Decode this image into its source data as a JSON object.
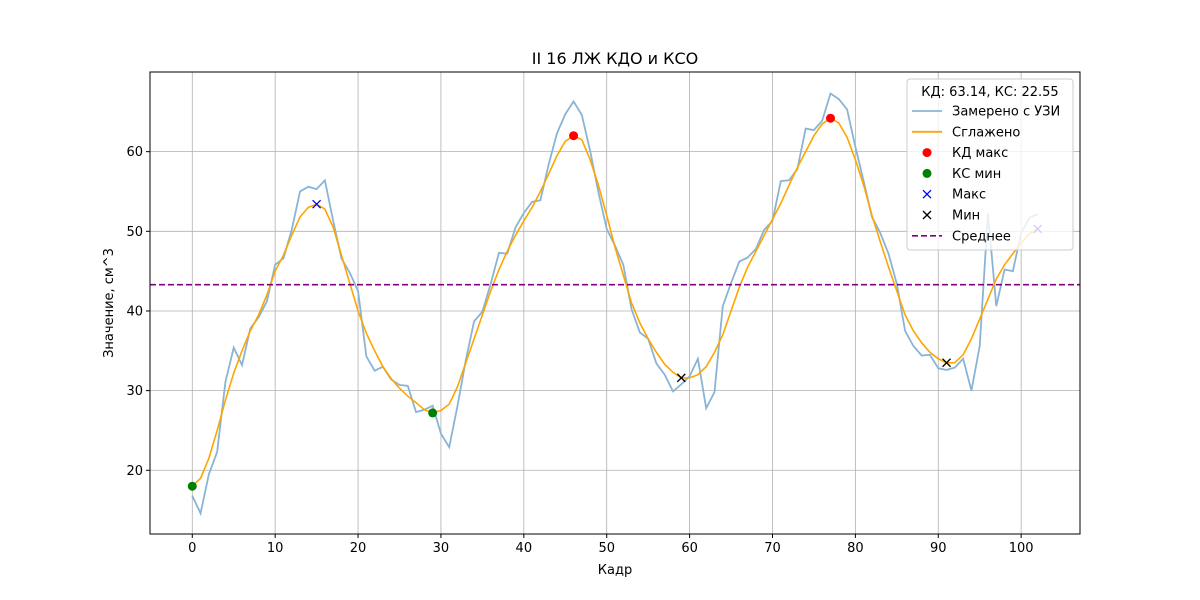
{
  "chart_data": {
    "type": "line",
    "title": "II 16 ЛЖ КДО и КСО",
    "xlabel": "Кадр",
    "ylabel": "Значение, см^3",
    "xlim": [
      -5.1,
      107.1
    ],
    "ylim": [
      12,
      70
    ],
    "xticks": [
      0,
      10,
      20,
      30,
      40,
      50,
      60,
      70,
      80,
      90,
      100
    ],
    "yticks": [
      20,
      30,
      40,
      50,
      60
    ],
    "grid": true,
    "legend_position": "top-right",
    "legend_title": "КД: 63.14, КС: 22.55",
    "colors": {
      "measured": "#8ab4d6",
      "smoothed": "#ffa500",
      "kd_max": "#ff0000",
      "ks_min": "#008000",
      "max": "#0000ff",
      "min": "#000000",
      "mean": "#800080"
    },
    "series": [
      {
        "name": "Замерено с УЗИ",
        "style": "line",
        "x": [
          0,
          1,
          2,
          3,
          4,
          5,
          6,
          7,
          8,
          9,
          10,
          11,
          12,
          13,
          14,
          15,
          16,
          17,
          18,
          19,
          20,
          21,
          22,
          23,
          24,
          25,
          26,
          27,
          28,
          29,
          30,
          31,
          32,
          33,
          34,
          35,
          36,
          37,
          38,
          39,
          40,
          41,
          42,
          43,
          44,
          45,
          46,
          47,
          48,
          49,
          50,
          51,
          52,
          53,
          54,
          55,
          56,
          57,
          58,
          59,
          60,
          61,
          62,
          63,
          64,
          65,
          66,
          67,
          68,
          69,
          70,
          71,
          72,
          73,
          74,
          75,
          76,
          77,
          78,
          79,
          80,
          81,
          82,
          83,
          84,
          85,
          86,
          87,
          88,
          89,
          90,
          91,
          92,
          93,
          94,
          95,
          96,
          97,
          98,
          99,
          100,
          101,
          102
        ],
        "y": [
          16.8,
          14.6,
          19.5,
          22.3,
          31.1,
          35.4,
          33.2,
          37.8,
          39.2,
          41.2,
          45.8,
          46.6,
          50.2,
          55.0,
          55.6,
          55.3,
          56.4,
          51.3,
          46.6,
          44.8,
          42.5,
          34.3,
          32.5,
          33.0,
          31.4,
          30.7,
          30.6,
          27.3,
          27.6,
          28.1,
          24.6,
          22.9,
          28.1,
          33.8,
          38.7,
          39.9,
          43.4,
          47.3,
          47.2,
          50.5,
          52.3,
          53.7,
          53.9,
          58.4,
          62.3,
          64.7,
          66.3,
          64.6,
          60.1,
          54.9,
          50.3,
          48.2,
          45.8,
          40.2,
          37.3,
          36.5,
          33.4,
          32.0,
          29.9,
          30.8,
          31.8,
          34.0,
          27.8,
          29.8,
          40.6,
          43.5,
          46.2,
          46.7,
          47.8,
          50.2,
          51.3,
          56.3,
          56.4,
          57.8,
          62.9,
          62.7,
          63.9,
          67.3,
          66.6,
          65.3,
          60.6,
          56.3,
          51.8,
          49.8,
          47.2,
          43.4,
          37.5,
          35.6,
          34.4,
          34.5,
          32.8,
          32.6,
          32.9,
          34.0,
          30.0,
          35.6,
          52.3,
          40.6,
          45.2,
          45.0,
          49.8,
          51.7,
          52.2
        ]
      },
      {
        "name": "Сглажено",
        "style": "line",
        "x": [
          0,
          1,
          2,
          3,
          4,
          5,
          6,
          7,
          8,
          9,
          10,
          11,
          12,
          13,
          14,
          15,
          16,
          17,
          18,
          19,
          20,
          21,
          22,
          23,
          24,
          25,
          26,
          27,
          28,
          29,
          30,
          31,
          32,
          33,
          34,
          35,
          36,
          37,
          38,
          39,
          40,
          41,
          42,
          43,
          44,
          45,
          46,
          47,
          48,
          49,
          50,
          51,
          52,
          53,
          54,
          55,
          56,
          57,
          58,
          59,
          60,
          61,
          62,
          63,
          64,
          65,
          66,
          67,
          68,
          69,
          70,
          71,
          72,
          73,
          74,
          75,
          76,
          77,
          78,
          79,
          80,
          81,
          82,
          83,
          84,
          85,
          86,
          87,
          88,
          89,
          90,
          91,
          92,
          93,
          94,
          95,
          96,
          97,
          98,
          99,
          100,
          101,
          102
        ],
        "y": [
          18.0,
          19.0,
          21.5,
          25.0,
          28.8,
          32.2,
          35.0,
          37.5,
          39.5,
          42.0,
          45.0,
          47.0,
          49.5,
          51.8,
          53.0,
          53.4,
          52.8,
          50.5,
          47.0,
          43.5,
          40.0,
          37.2,
          35.0,
          33.0,
          31.5,
          30.3,
          29.3,
          28.5,
          27.6,
          27.2,
          27.5,
          28.3,
          30.5,
          33.5,
          36.5,
          39.5,
          42.5,
          45.2,
          47.5,
          49.5,
          51.3,
          53.0,
          55.0,
          57.2,
          59.5,
          61.3,
          62.0,
          61.5,
          59.0,
          55.8,
          52.0,
          48.0,
          44.5,
          41.0,
          38.5,
          36.5,
          34.8,
          33.3,
          32.3,
          31.6,
          31.6,
          32.0,
          33.0,
          34.8,
          37.0,
          40.0,
          43.0,
          45.5,
          47.5,
          49.5,
          51.5,
          53.5,
          55.8,
          58.0,
          60.0,
          62.0,
          63.5,
          64.2,
          63.6,
          61.8,
          59.0,
          55.8,
          52.0,
          48.7,
          45.5,
          42.5,
          39.5,
          37.5,
          36.0,
          34.8,
          34.0,
          33.5,
          33.5,
          34.5,
          36.5,
          39.0,
          41.5,
          44.0,
          45.8,
          47.2,
          48.5,
          49.7,
          50.3
        ]
      },
      {
        "name": "КД макс",
        "style": "dot",
        "x": [
          46,
          77
        ],
        "y": [
          62.0,
          64.2
        ]
      },
      {
        "name": "КС мин",
        "style": "dot",
        "x": [
          0,
          29
        ],
        "y": [
          18.0,
          27.2
        ]
      },
      {
        "name": "Макс",
        "style": "x",
        "x": [
          15,
          102
        ],
        "y": [
          53.4,
          50.3
        ]
      },
      {
        "name": "Мин",
        "style": "x",
        "x": [
          59,
          91
        ],
        "y": [
          31.6,
          33.5
        ]
      },
      {
        "name": "Среднее",
        "style": "dashed-hline",
        "y": 43.3
      }
    ]
  }
}
